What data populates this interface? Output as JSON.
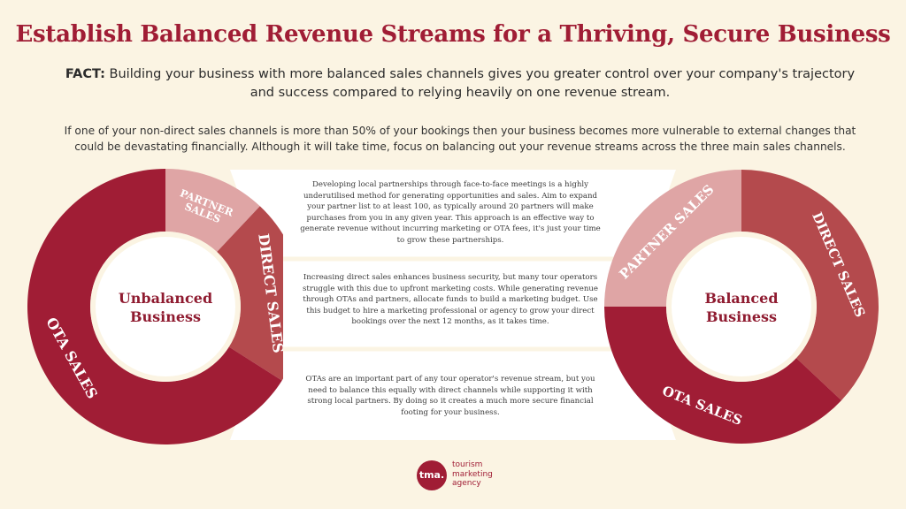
{
  "header": {
    "title": "Establish Balanced Revenue Streams for a Thriving, Secure Business",
    "fact_label": "FACT:",
    "fact_text": " Building your business with more balanced sales channels gives you greater control over your company's trajectory and success compared to relying heavily on one revenue stream.",
    "intro": "If one of your non-direct sales channels is more than 50% of your bookings then your business becomes more vulnerable to external changes that could be devastating financially. Although it will take time, focus on balancing out your revenue streams across the three main sales channels."
  },
  "descriptions": {
    "partner": "Developing local partnerships through face-to-face meetings is a highly underutilised method for generating opportunities and sales. Aim to expand your partner list to at least 100, as typically around 20 partners will make purchases from you in any given year. This approach is an effective way to generate revenue without incurring marketing or OTA fees, it's just your time to grow these partnerships.",
    "direct": "Increasing direct sales enhances business security, but many tour operators struggle with this due to upfront marketing costs. While generating revenue through OTAs and partners, allocate funds to build a marketing budget. Use this budget to hire a marketing professional or agency to grow your direct bookings over the next 12 months, as it takes time.",
    "ota": "OTAs are an important part of any tour operator's revenue stream, but you need to balance this equally with direct channels while supporting it with strong local partners. By doing so it creates a much more secure financial footing for your business."
  },
  "chart_data": [
    {
      "type": "pie",
      "title": "Unbalanced Business",
      "title_lines": [
        "Unbalanced",
        "Business"
      ],
      "slices": [
        {
          "label": "PARTNER SALES",
          "label_lines": [
            "PARTNER",
            "SALES"
          ],
          "value": 12,
          "color": "#dfa5a5"
        },
        {
          "label": "DIRECT SALES",
          "label_lines": [
            "DIRECT SALES"
          ],
          "value": 22,
          "color": "#b44a4d"
        },
        {
          "label": "OTA SALES",
          "label_lines": [
            "OTA SALES"
          ],
          "value": 66,
          "color": "#a01d35"
        }
      ]
    },
    {
      "type": "pie",
      "title": "Balanced Business",
      "title_lines": [
        "Balanced",
        "Business"
      ],
      "slices": [
        {
          "label": "DIRECT SALES",
          "label_lines": [
            "DIRECT SALES"
          ],
          "value": 37,
          "color": "#b44a4d"
        },
        {
          "label": "OTA SALES",
          "label_lines": [
            "OTA SALES"
          ],
          "value": 38,
          "color": "#a01d35"
        },
        {
          "label": "PARTNER SALES",
          "label_lines": [
            "PARTNER SALES"
          ],
          "value": 25,
          "color": "#dfa5a5"
        }
      ]
    }
  ],
  "logo": {
    "mark": "tma.",
    "lines": [
      "tourism",
      "marketing",
      "agency"
    ]
  }
}
